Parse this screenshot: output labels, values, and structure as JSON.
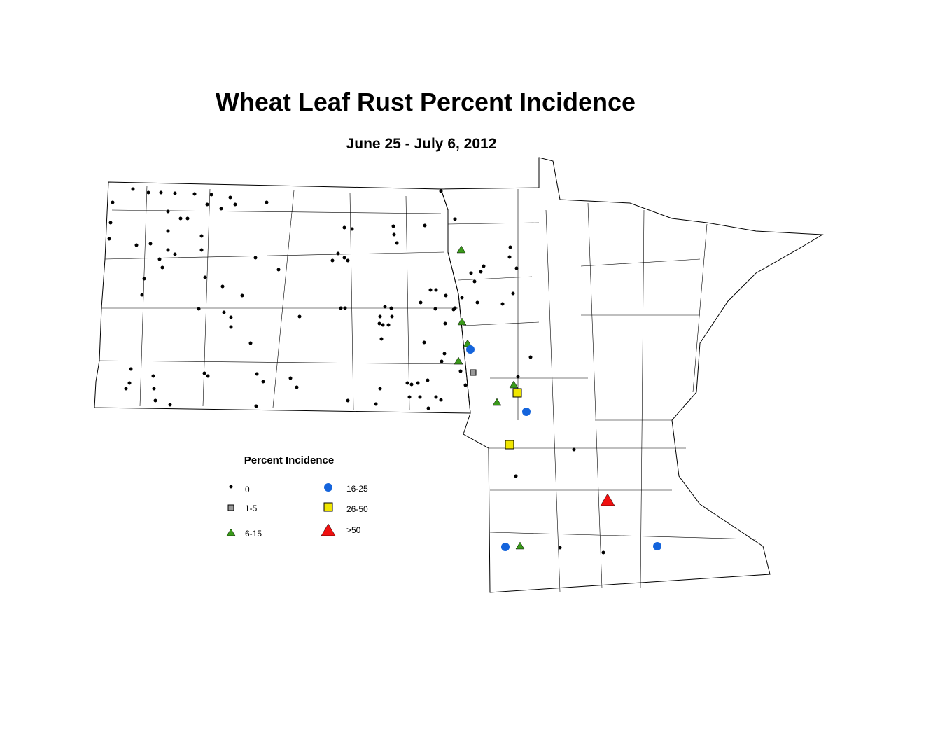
{
  "title": "Wheat Leaf Rust Percent Incidence",
  "subtitle": "June 25 - July 6, 2012",
  "legend": {
    "title": "Percent Incidence",
    "items": [
      {
        "label": "0"
      },
      {
        "label": "1-5"
      },
      {
        "label": "6-15"
      },
      {
        "label": "16-25"
      },
      {
        "label": "26-50"
      },
      {
        "label": ">50"
      }
    ]
  }
}
